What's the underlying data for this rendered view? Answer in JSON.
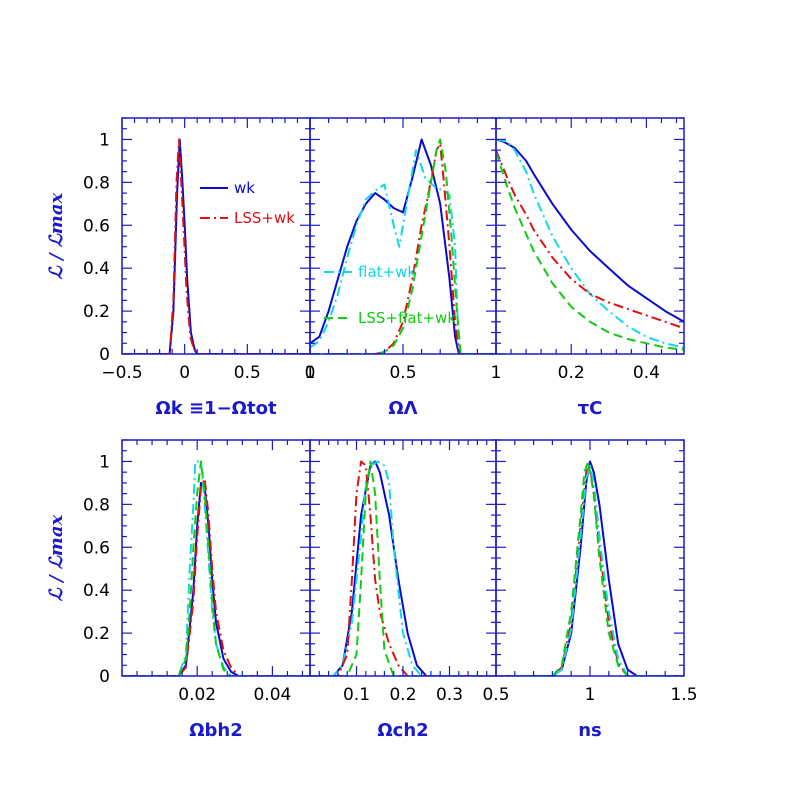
{
  "colors": {
    "axis": "#1a1acc",
    "wk": "#0a0acf",
    "lss_wk": "#e01010",
    "flat_wk": "#10d8e8",
    "lss_flat_wk": "#10cc10"
  },
  "chart_data": [
    {
      "type": "line",
      "id": "omega_k",
      "xlabel": "Ωk ≡1−Ωtot",
      "ylabel": "ℒ / ℒmax",
      "xlim": [
        -0.5,
        1.0
      ],
      "ylim": [
        0,
        1.1
      ],
      "xticks": [
        -0.5,
        0,
        0.5,
        1
      ],
      "xtick_labels": [
        "−0.5",
        "0",
        "0.5",
        "1"
      ],
      "yticks": [
        0,
        0.2,
        0.4,
        0.6,
        0.8,
        1
      ],
      "ytick_labels": [
        "0",
        "0.2",
        "0.4",
        "0.6",
        "0.8",
        "1"
      ],
      "legend": [
        {
          "key": "wk",
          "label": "wk"
        },
        {
          "key": "lss_wk",
          "label": "LSS+wk"
        }
      ],
      "series": [
        {
          "name": "wk",
          "key": "wk",
          "dash": "solid",
          "x": [
            -0.5,
            -0.12,
            -0.09,
            -0.06,
            -0.04,
            -0.02,
            0.0,
            0.02,
            0.05,
            0.08,
            0.1,
            1.0
          ],
          "y": [
            0,
            0,
            0.2,
            0.75,
            1.0,
            0.82,
            0.6,
            0.35,
            0.1,
            0.02,
            0,
            0
          ]
        },
        {
          "name": "LSS+wk",
          "key": "lss_wk",
          "dash": "dashdot",
          "x": [
            -0.5,
            -0.12,
            -0.09,
            -0.065,
            -0.045,
            -0.025,
            -0.005,
            0.015,
            0.045,
            0.075,
            0.1,
            1.0
          ],
          "y": [
            0,
            0,
            0.25,
            0.8,
            1.0,
            0.78,
            0.55,
            0.3,
            0.08,
            0.02,
            0,
            0
          ]
        }
      ]
    },
    {
      "type": "line",
      "id": "omega_lambda",
      "xlabel": "ΩΛ",
      "xlim": [
        0,
        1.0
      ],
      "ylim": [
        0,
        1.1
      ],
      "xticks": [
        0,
        0.5,
        1
      ],
      "xtick_labels": [
        "0",
        "0.5",
        "1"
      ],
      "legend": [
        {
          "key": "flat_wk",
          "label": "flat+wk"
        },
        {
          "key": "lss_flat_wk",
          "label": "LSS+flat+wk"
        }
      ],
      "series": [
        {
          "name": "wk",
          "key": "wk",
          "dash": "solid",
          "x": [
            0,
            0.05,
            0.1,
            0.15,
            0.2,
            0.25,
            0.3,
            0.35,
            0.4,
            0.45,
            0.5,
            0.55,
            0.6,
            0.65,
            0.7,
            0.75,
            0.78,
            0.8,
            1.0
          ],
          "y": [
            0.05,
            0.08,
            0.2,
            0.35,
            0.5,
            0.62,
            0.7,
            0.75,
            0.72,
            0.68,
            0.66,
            0.82,
            1.0,
            0.88,
            0.7,
            0.35,
            0.08,
            0,
            0
          ]
        },
        {
          "name": "flat+wk",
          "key": "flat_wk",
          "dash": "dashdot",
          "x": [
            0,
            0.05,
            0.1,
            0.15,
            0.2,
            0.25,
            0.3,
            0.35,
            0.4,
            0.45,
            0.48,
            0.52,
            0.57,
            0.62,
            0.67,
            0.72,
            0.75,
            0.78,
            0.8,
            1.0
          ],
          "y": [
            0.03,
            0.06,
            0.15,
            0.28,
            0.45,
            0.6,
            0.72,
            0.76,
            0.79,
            0.6,
            0.5,
            0.7,
            0.95,
            0.82,
            0.78,
            0.76,
            0.74,
            0.5,
            0,
            0
          ]
        },
        {
          "name": "LSS+wk",
          "key": "lss_wk",
          "dash": "dashdot",
          "x": [
            0,
            0.35,
            0.4,
            0.45,
            0.5,
            0.55,
            0.6,
            0.63,
            0.66,
            0.68,
            0.7,
            0.72,
            0.75,
            0.78,
            0.8,
            1.0
          ],
          "y": [
            0,
            0,
            0.01,
            0.05,
            0.15,
            0.35,
            0.6,
            0.72,
            0.85,
            0.95,
            0.98,
            0.8,
            0.5,
            0.15,
            0,
            0
          ]
        },
        {
          "name": "LSS+flat+wk",
          "key": "lss_flat_wk",
          "dash": "dashed",
          "x": [
            0,
            0.35,
            0.4,
            0.45,
            0.5,
            0.55,
            0.6,
            0.63,
            0.66,
            0.68,
            0.7,
            0.73,
            0.76,
            0.79,
            0.81,
            1.0
          ],
          "y": [
            0,
            0,
            0.01,
            0.04,
            0.12,
            0.3,
            0.55,
            0.7,
            0.85,
            0.95,
            1.0,
            0.85,
            0.55,
            0.2,
            0,
            0
          ]
        }
      ]
    },
    {
      "type": "line",
      "id": "tau_c",
      "xlabel": "τC",
      "xlim": [
        0,
        0.5
      ],
      "ylim": [
        0,
        1.1
      ],
      "xticks": [
        0.2,
        0.4
      ],
      "xtick_labels": [
        "0.2",
        "0.4"
      ],
      "series": [
        {
          "name": "wk",
          "key": "wk",
          "dash": "solid",
          "x": [
            0,
            0.02,
            0.05,
            0.08,
            0.1,
            0.15,
            0.2,
            0.25,
            0.3,
            0.35,
            0.4,
            0.45,
            0.5
          ],
          "y": [
            1.0,
            0.99,
            0.96,
            0.9,
            0.84,
            0.7,
            0.58,
            0.48,
            0.4,
            0.32,
            0.26,
            0.2,
            0.15
          ]
        },
        {
          "name": "flat+wk",
          "key": "flat_wk",
          "dash": "dashdot",
          "x": [
            0,
            0.03,
            0.05,
            0.08,
            0.1,
            0.15,
            0.2,
            0.25,
            0.3,
            0.35,
            0.4,
            0.45,
            0.5
          ],
          "y": [
            1.0,
            0.99,
            0.95,
            0.85,
            0.75,
            0.55,
            0.4,
            0.28,
            0.2,
            0.13,
            0.08,
            0.05,
            0.03
          ]
        },
        {
          "name": "LSS+wk",
          "key": "lss_wk",
          "dash": "dashdot",
          "x": [
            0,
            0.03,
            0.05,
            0.08,
            0.1,
            0.15,
            0.2,
            0.25,
            0.3,
            0.35,
            0.4,
            0.45,
            0.5
          ],
          "y": [
            0.95,
            0.82,
            0.74,
            0.65,
            0.58,
            0.45,
            0.35,
            0.28,
            0.24,
            0.21,
            0.18,
            0.15,
            0.12
          ]
        },
        {
          "name": "LSS+flat+wk",
          "key": "lss_flat_wk",
          "dash": "dashed",
          "x": [
            0,
            0.03,
            0.05,
            0.08,
            0.1,
            0.15,
            0.2,
            0.25,
            0.3,
            0.35,
            0.4,
            0.45,
            0.5
          ],
          "y": [
            0.94,
            0.78,
            0.68,
            0.56,
            0.48,
            0.33,
            0.22,
            0.15,
            0.1,
            0.07,
            0.05,
            0.03,
            0.02
          ]
        }
      ]
    },
    {
      "type": "line",
      "id": "omega_b_h2",
      "xlabel": "Ωbh2",
      "ylabel": "ℒ / ℒmax",
      "xlim": [
        0,
        0.05
      ],
      "ylim": [
        0,
        1.1
      ],
      "xticks": [
        0.02,
        0.04
      ],
      "xtick_labels": [
        "0.02",
        "0.04"
      ],
      "yticks": [
        0,
        0.2,
        0.4,
        0.6,
        0.8,
        1
      ],
      "ytick_labels": [
        "0",
        "0.2",
        "0.4",
        "0.6",
        "0.8",
        "1"
      ],
      "series": [
        {
          "name": "wk",
          "key": "wk",
          "dash": "solid",
          "x": [
            0,
            0.015,
            0.017,
            0.019,
            0.02,
            0.021,
            0.022,
            0.023,
            0.024,
            0.025,
            0.027,
            0.029,
            0.031,
            0.05
          ],
          "y": [
            0,
            0,
            0.05,
            0.4,
            0.7,
            0.9,
            0.88,
            0.7,
            0.45,
            0.25,
            0.08,
            0.02,
            0,
            0
          ]
        },
        {
          "name": "LSS+wk",
          "key": "lss_wk",
          "dash": "dashdot",
          "x": [
            0,
            0.015,
            0.017,
            0.019,
            0.02,
            0.021,
            0.022,
            0.023,
            0.024,
            0.025,
            0.027,
            0.029,
            0.031,
            0.05
          ],
          "y": [
            0,
            0,
            0.04,
            0.35,
            0.65,
            0.88,
            0.92,
            0.75,
            0.5,
            0.3,
            0.12,
            0.04,
            0,
            0
          ]
        },
        {
          "name": "flat+wk",
          "key": "flat_wk",
          "dash": "dashdot",
          "x": [
            0,
            0.015,
            0.017,
            0.018,
            0.019,
            0.0195,
            0.021,
            0.022,
            0.023,
            0.024,
            0.025,
            0.027,
            0.029,
            0.05
          ],
          "y": [
            0,
            0,
            0.1,
            0.5,
            0.8,
            1.0,
            1.0,
            0.8,
            0.55,
            0.3,
            0.15,
            0.04,
            0,
            0
          ]
        },
        {
          "name": "LSS+flat+wk",
          "key": "lss_flat_wk",
          "dash": "dashed",
          "x": [
            0,
            0.015,
            0.017,
            0.018,
            0.019,
            0.02,
            0.021,
            0.022,
            0.023,
            0.024,
            0.025,
            0.027,
            0.029,
            0.05
          ],
          "y": [
            0,
            0,
            0.08,
            0.3,
            0.6,
            0.85,
            1.0,
            0.85,
            0.6,
            0.35,
            0.15,
            0.03,
            0,
            0
          ]
        }
      ]
    },
    {
      "type": "line",
      "id": "omega_c_h2",
      "xlabel": "Ωch2",
      "xlim": [
        0,
        0.4
      ],
      "ylim": [
        0,
        1.1
      ],
      "xticks": [
        0.1,
        0.2,
        0.3
      ],
      "xtick_labels": [
        "0.1",
        "0.2",
        "0.3"
      ],
      "series": [
        {
          "name": "wk",
          "key": "wk",
          "dash": "solid",
          "x": [
            0,
            0.05,
            0.07,
            0.09,
            0.11,
            0.13,
            0.14,
            0.15,
            0.17,
            0.19,
            0.21,
            0.23,
            0.25,
            0.4
          ],
          "y": [
            0,
            0,
            0.05,
            0.3,
            0.75,
            0.98,
            1.0,
            0.95,
            0.75,
            0.45,
            0.2,
            0.05,
            0,
            0
          ]
        },
        {
          "name": "flat+wk",
          "key": "flat_wk",
          "dash": "dashdot",
          "x": [
            0,
            0.05,
            0.07,
            0.09,
            0.11,
            0.12,
            0.13,
            0.145,
            0.16,
            0.17,
            0.18,
            0.2,
            0.22,
            0.24,
            0.4
          ],
          "y": [
            0,
            0,
            0.05,
            0.25,
            0.65,
            0.9,
            0.98,
            1.0,
            0.98,
            0.9,
            0.6,
            0.2,
            0.05,
            0,
            0
          ]
        },
        {
          "name": "LSS+wk",
          "key": "lss_wk",
          "dash": "dashdot",
          "x": [
            0,
            0.06,
            0.08,
            0.09,
            0.1,
            0.11,
            0.12,
            0.13,
            0.14,
            0.15,
            0.17,
            0.19,
            0.21,
            0.4
          ],
          "y": [
            0,
            0,
            0.1,
            0.45,
            0.85,
            1.0,
            0.98,
            0.75,
            0.45,
            0.3,
            0.15,
            0.05,
            0,
            0
          ]
        },
        {
          "name": "LSS+flat+wk",
          "key": "lss_flat_wk",
          "dash": "dashed",
          "x": [
            0,
            0.08,
            0.1,
            0.11,
            0.12,
            0.13,
            0.14,
            0.15,
            0.16,
            0.18,
            0.4
          ],
          "y": [
            0,
            0,
            0.1,
            0.45,
            0.85,
            1.0,
            0.85,
            0.45,
            0.12,
            0,
            0
          ]
        }
      ]
    },
    {
      "type": "line",
      "id": "n_s",
      "xlabel": "ns",
      "xlim": [
        0.5,
        1.5
      ],
      "ylim": [
        0,
        1.1
      ],
      "xticks": [
        0.5,
        1,
        1.5
      ],
      "xtick_labels": [
        "0.5",
        "1",
        "1.5"
      ],
      "series": [
        {
          "name": "wk",
          "key": "wk",
          "dash": "solid",
          "x": [
            0.5,
            0.8,
            0.85,
            0.9,
            0.95,
            0.98,
            1.0,
            1.02,
            1.05,
            1.1,
            1.15,
            1.2,
            1.25,
            1.5
          ],
          "y": [
            0,
            0,
            0.03,
            0.2,
            0.6,
            0.9,
            1.0,
            0.95,
            0.8,
            0.45,
            0.15,
            0.03,
            0,
            0
          ]
        },
        {
          "name": "LSS+wk",
          "key": "lss_wk",
          "dash": "dashdot",
          "x": [
            0.5,
            0.8,
            0.85,
            0.9,
            0.95,
            0.98,
            1.0,
            1.02,
            1.05,
            1.1,
            1.15,
            1.2,
            1.5
          ],
          "y": [
            0,
            0,
            0.04,
            0.25,
            0.7,
            0.95,
            0.98,
            0.85,
            0.6,
            0.25,
            0.06,
            0,
            0
          ]
        },
        {
          "name": "flat+wk",
          "key": "flat_wk",
          "dash": "dashdot",
          "x": [
            0.5,
            0.8,
            0.85,
            0.9,
            0.95,
            0.98,
            1.0,
            1.02,
            1.05,
            1.1,
            1.15,
            1.2,
            1.5
          ],
          "y": [
            0,
            0,
            0.03,
            0.22,
            0.65,
            0.92,
            0.98,
            0.9,
            0.65,
            0.3,
            0.08,
            0,
            0
          ]
        },
        {
          "name": "LSS+flat+wk",
          "key": "lss_flat_wk",
          "dash": "dashed",
          "x": [
            0.5,
            0.8,
            0.85,
            0.9,
            0.95,
            0.97,
            0.99,
            1.02,
            1.05,
            1.1,
            1.15,
            1.2,
            1.5
          ],
          "y": [
            0,
            0,
            0.05,
            0.3,
            0.75,
            0.95,
            1.0,
            0.85,
            0.55,
            0.2,
            0.05,
            0,
            0
          ]
        }
      ]
    }
  ]
}
